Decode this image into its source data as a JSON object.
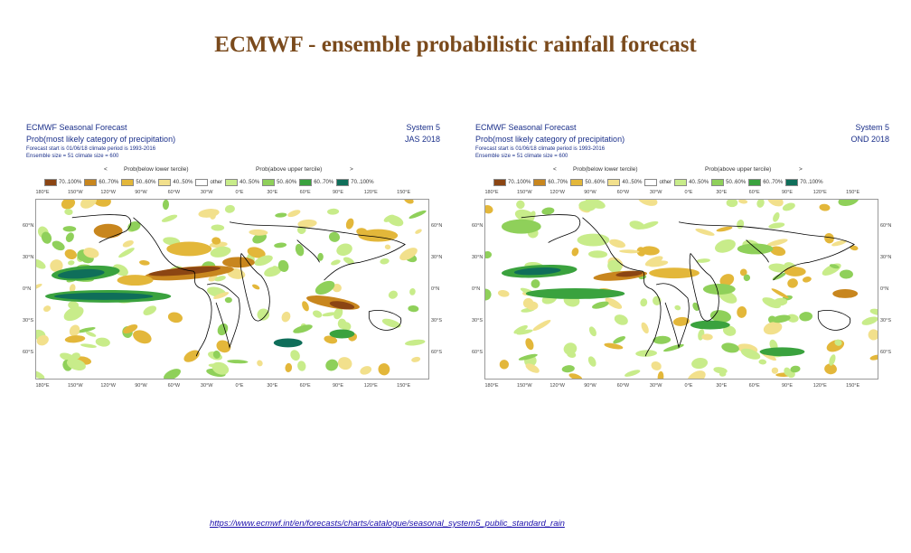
{
  "slide": {
    "title": "ECMWF - ensemble probabilistic rainfall forecast",
    "source_url": "https://www.ecmwf.int/en/forecasts/charts/catalogue/seasonal_system5_public_standard_rain"
  },
  "colors": {
    "brown_70_100": "#8b4513",
    "brown_60_70": "#c8861e",
    "brown_50_60": "#e3b73a",
    "brown_40_50": "#f2e08c",
    "other": "#ffffff",
    "green_40_50": "#c8ec8a",
    "green_50_60": "#8fd05a",
    "green_60_70": "#3aa23e",
    "green_70_100": "#0f6e5a",
    "title": "#7a4a1c",
    "header_text": "#1a2f8a"
  },
  "legend": {
    "below_label": "Prob(below lower tercile)",
    "above_label": "Prob(above upper tercile)",
    "items": [
      {
        "label": "70..100%",
        "color_key": "brown_70_100"
      },
      {
        "label": "60..70%",
        "color_key": "brown_60_70"
      },
      {
        "label": "50..60%",
        "color_key": "brown_50_60"
      },
      {
        "label": "40..50%",
        "color_key": "brown_40_50"
      },
      {
        "label": "other",
        "color_key": "other"
      },
      {
        "label": "40..50%",
        "color_key": "green_40_50"
      },
      {
        "label": "50..60%",
        "color_key": "green_50_60"
      },
      {
        "label": "60..70%",
        "color_key": "green_60_70"
      },
      {
        "label": "70..100%",
        "color_key": "green_70_100"
      }
    ]
  },
  "axes": {
    "lon_top": [
      "180°E",
      "150°W",
      "120°W",
      "90°W",
      "60°W",
      "30°W",
      "0°E",
      "30°E",
      "60°E",
      "90°E",
      "120°E",
      "150°E"
    ],
    "lon_bottom": [
      "180°E",
      "150°W",
      "120°W",
      "90°W",
      "60°W",
      "30°W",
      "0°E",
      "30°E",
      "60°E",
      "90°E",
      "120°E",
      "150°E"
    ],
    "lat_left": [
      "60°N",
      "30°N",
      "0°N",
      "30°S",
      "60°S"
    ],
    "lat_right": [
      "60°N",
      "30°N",
      "0°N",
      "30°S",
      "60°S"
    ]
  },
  "panels": [
    {
      "id": "left",
      "title": "ECMWF Seasonal Forecast",
      "subtitle": "Prob(most likely category of precipitation)",
      "forecast_info": "Forecast start is 01/06/18 climate period is 1993-2016",
      "ensemble_info": "Ensemble size = 51 climate size = 600",
      "system": "System 5",
      "season": "JAS 2018"
    },
    {
      "id": "right",
      "title": "ECMWF Seasonal Forecast",
      "subtitle": "Prob(most likely category of precipitation)",
      "forecast_info": "Forecast start is 01/06/18 climate period is 1993-2016",
      "ensemble_info": "Ensemble size = 51 climate size = 600",
      "system": "System 5",
      "season": "OND 2018"
    }
  ]
}
